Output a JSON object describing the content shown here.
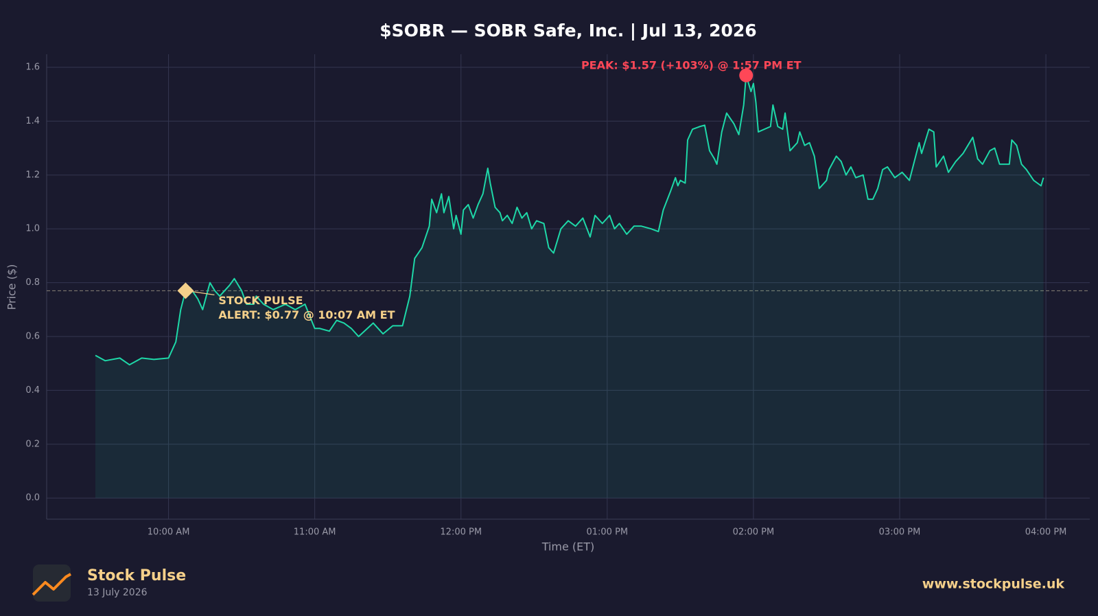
{
  "chart_data": {
    "type": "line",
    "title": "$SOBR — SOBR Safe, Inc.  |  Jul 13, 2026",
    "x_label": "Time (ET)",
    "y_label": "Price ($)",
    "xlim": [
      "09:10",
      "16:18"
    ],
    "xticks": [
      {
        "value": "10:00",
        "label": "10:00 AM"
      },
      {
        "value": "11:00",
        "label": "11:00 AM"
      },
      {
        "value": "12:00",
        "label": "12:00 PM"
      },
      {
        "value": "13:00",
        "label": "01:00 PM"
      },
      {
        "value": "14:00",
        "label": "02:00 PM"
      },
      {
        "value": "15:00",
        "label": "03:00 PM"
      },
      {
        "value": "16:00",
        "label": "04:00 PM"
      }
    ],
    "ylim": [
      -0.0785,
      1.6485
    ],
    "yticks": [
      {
        "value": 0,
        "label": "0.0"
      },
      0.2,
      0.4,
      0.6,
      0.8,
      {
        "value": 1,
        "label": "1.0"
      },
      1.2,
      1.4,
      1.6
    ],
    "grid": true,
    "x": [
      "09:30",
      "09:34",
      "09:40",
      "09:44",
      "09:49",
      "09:54",
      "10:00",
      "10:03",
      "10:05",
      "10:07",
      "10:09",
      "10:12",
      "10:14",
      "10:17",
      "10:19",
      "10:21",
      "10:25",
      "10:27",
      "10:30",
      "10:32",
      "10:35",
      "10:36",
      "10:39",
      "10:43",
      "10:48",
      "10:52",
      "10:56",
      "11:00",
      "11:02",
      "11:06",
      "11:09",
      "11:12",
      "11:15",
      "11:18",
      "11:24",
      "11:28",
      "11:32",
      "11:36",
      "11:39",
      "11:41",
      "11:44",
      "11:47",
      "11:48",
      "11:50",
      "11:52",
      "11:53",
      "11:55",
      "11:57",
      "11:58",
      "12:00",
      "12:01",
      "12:03",
      "12:05",
      "12:07",
      "12:09",
      "12:11",
      "12:12",
      "12:14",
      "12:16",
      "12:17",
      "12:19",
      "12:21",
      "12:23",
      "12:25",
      "12:27",
      "12:29",
      "12:31",
      "12:34",
      "12:36",
      "12:38",
      "12:41",
      "12:44",
      "12:47",
      "12:50",
      "12:53",
      "12:55",
      "12:58",
      "13:01",
      "13:03",
      "13:05",
      "13:08",
      "13:11",
      "13:14",
      "13:18",
      "13:21",
      "13:23",
      "13:26",
      "13:28",
      "13:29",
      "13:30",
      "13:32",
      "13:33",
      "13:35",
      "13:38",
      "13:40",
      "13:42",
      "13:44",
      "13:45",
      "13:47",
      "13:49",
      "13:52",
      "13:54",
      "13:56",
      "13:57",
      "13:59",
      "14:00",
      "14:01",
      "14:02",
      "14:07",
      "14:08",
      "14:10",
      "14:12",
      "14:13",
      "14:15",
      "14:18",
      "14:19",
      "14:21",
      "14:23",
      "14:25",
      "14:27",
      "14:30",
      "14:31",
      "14:34",
      "14:36",
      "14:38",
      "14:40",
      "14:42",
      "14:45",
      "14:47",
      "14:49",
      "14:51",
      "14:53",
      "14:55",
      "14:58",
      "15:01",
      "15:04",
      "15:06",
      "15:08",
      "15:09",
      "15:12",
      "15:14",
      "15:15",
      "15:18",
      "15:20",
      "15:23",
      "15:26",
      "15:28",
      "15:30",
      "15:32",
      "15:34",
      "15:37",
      "15:39",
      "15:41",
      "15:45",
      "15:46",
      "15:48",
      "15:50",
      "15:52",
      "15:55",
      "15:58",
      "15:59"
    ],
    "series": [
      {
        "name": "SOBR",
        "color": "#1ed8a8",
        "values": [
          0.53,
          0.51,
          0.52,
          0.495,
          0.52,
          0.515,
          0.52,
          0.58,
          0.7,
          0.77,
          0.78,
          0.74,
          0.7,
          0.8,
          0.77,
          0.75,
          0.79,
          0.815,
          0.77,
          0.72,
          0.72,
          0.75,
          0.72,
          0.7,
          0.72,
          0.7,
          0.72,
          0.63,
          0.63,
          0.62,
          0.66,
          0.65,
          0.63,
          0.6,
          0.65,
          0.61,
          0.64,
          0.64,
          0.75,
          0.89,
          0.93,
          1.01,
          1.11,
          1.06,
          1.13,
          1.06,
          1.12,
          1.0,
          1.05,
          0.98,
          1.07,
          1.09,
          1.04,
          1.09,
          1.13,
          1.225,
          1.17,
          1.08,
          1.06,
          1.03,
          1.05,
          1.02,
          1.08,
          1.04,
          1.06,
          1.0,
          1.03,
          1.02,
          0.93,
          0.91,
          1.0,
          1.03,
          1.01,
          1.04,
          0.97,
          1.05,
          1.02,
          1.05,
          1.0,
          1.02,
          0.98,
          1.01,
          1.01,
          1.0,
          0.99,
          1.07,
          1.14,
          1.19,
          1.16,
          1.18,
          1.17,
          1.33,
          1.37,
          1.38,
          1.385,
          1.29,
          1.26,
          1.24,
          1.36,
          1.43,
          1.39,
          1.35,
          1.46,
          1.57,
          1.51,
          1.54,
          1.47,
          1.36,
          1.38,
          1.46,
          1.38,
          1.37,
          1.43,
          1.29,
          1.32,
          1.36,
          1.31,
          1.32,
          1.27,
          1.15,
          1.18,
          1.22,
          1.27,
          1.25,
          1.2,
          1.23,
          1.19,
          1.2,
          1.11,
          1.11,
          1.15,
          1.22,
          1.23,
          1.19,
          1.21,
          1.18,
          1.25,
          1.32,
          1.28,
          1.37,
          1.36,
          1.23,
          1.27,
          1.21,
          1.25,
          1.28,
          1.31,
          1.34,
          1.26,
          1.24,
          1.29,
          1.3,
          1.24,
          1.24,
          1.33,
          1.31,
          1.24,
          1.22,
          1.18,
          1.16,
          1.19
        ]
      }
    ],
    "peak": {
      "x": "13:57",
      "value": 1.57,
      "color": "#ff4757",
      "label": "PEAK: $1.57 (+103%) @ 1:57 PM ET"
    },
    "alert": {
      "x": "10:07",
      "value": 0.77,
      "color": "#f5d08a",
      "label": [
        "STOCK PULSE",
        "ALERT: $0.77 @ 10:07 AM ET"
      ]
    }
  },
  "footer": {
    "brand": "Stock Pulse",
    "date": "13 July 2026",
    "url": "www.stockpulse.uk"
  }
}
